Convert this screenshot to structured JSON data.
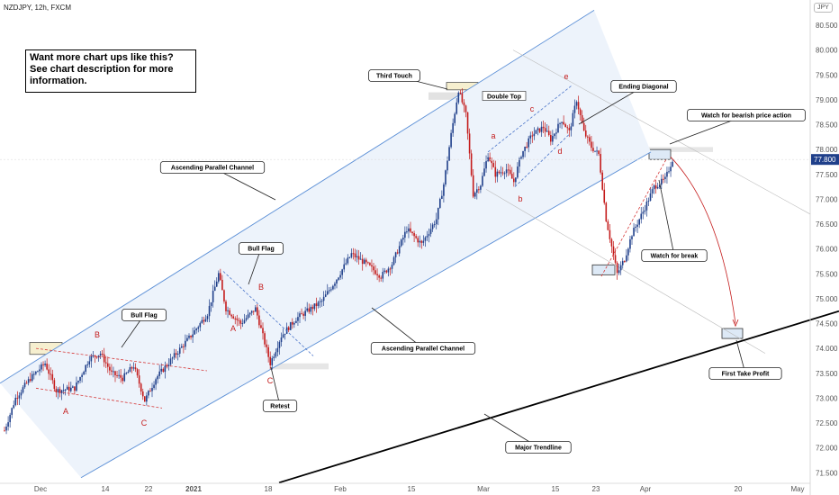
{
  "header": {
    "symbol_line": "NZDJPY, 12h, FXCM",
    "currency": "JPY"
  },
  "promo": [
    "Want more chart ups like this?",
    "See chart description for more",
    "information."
  ],
  "price_scale": {
    "ticks": [
      "80.500",
      "80.000",
      "79.500",
      "79.000",
      "78.500",
      "78.000",
      "77.500",
      "77.000",
      "76.500",
      "76.000",
      "75.500",
      "75.000",
      "74.500",
      "74.000",
      "73.500",
      "73.000",
      "72.500",
      "72.000",
      "71.500"
    ],
    "last_price": "77.800",
    "last_price_color": "#1f3f8a"
  },
  "time_scale": {
    "ticks": [
      "Dec",
      "14",
      "22",
      "2021",
      "18",
      "Feb",
      "15",
      "Mar",
      "15",
      "23",
      "Apr",
      "20",
      "May"
    ]
  },
  "colors": {
    "up": "#1f3f8a",
    "down": "#c41b1b",
    "channel_line": "#5b8fd6",
    "channel_fill": "#edf3fb",
    "trendline": "#000000",
    "dashed": "#d63a3a",
    "blue_dashed": "#4a74c9"
  },
  "callouts": {
    "third_touch": "Third Touch",
    "double_top": "Double Top",
    "ending_diagonal": "Ending Diagonal",
    "watch_bearish": "Watch for bearish price action",
    "ascending_upper": "Ascending Parallel Channel",
    "ascending_lower": "Ascending Parallel Channel",
    "bull_flag_1": "Bull Flag",
    "bull_flag_2": "Bull Flag",
    "retest": "Retest",
    "watch_break": "Watch for break",
    "first_tp": "First Take Profit",
    "major_trendline": "Major Trendline"
  },
  "wave_labels": {
    "flag1": [
      "B",
      "A",
      "C"
    ],
    "flag2": [
      "B",
      "A",
      "C"
    ],
    "diagonal": [
      "a",
      "b",
      "c",
      "d",
      "e"
    ]
  },
  "chart_data": {
    "type": "candlestick",
    "symbol": "NZDJPY",
    "timeframe": "12h",
    "source": "FXCM",
    "ylim": [
      71.3,
      80.8
    ],
    "y_ticks": [
      80.5,
      80.0,
      79.5,
      79.0,
      78.5,
      78.0,
      77.5,
      77.0,
      76.5,
      76.0,
      75.5,
      75.0,
      74.5,
      74.0,
      73.5,
      73.0,
      72.5,
      72.0,
      71.5
    ],
    "x_tick_labels": [
      "Dec",
      "14",
      "22",
      "2021",
      "18",
      "Feb",
      "15",
      "Mar",
      "15",
      "23",
      "Apr",
      "20",
      "May"
    ],
    "path_keypoints": [
      [
        0,
        72.35
      ],
      [
        6,
        73.0
      ],
      [
        14,
        73.4
      ],
      [
        22,
        73.7
      ],
      [
        28,
        73.15
      ],
      [
        38,
        73.2
      ],
      [
        46,
        73.8
      ],
      [
        52,
        73.9
      ],
      [
        58,
        73.5
      ],
      [
        64,
        73.4
      ],
      [
        70,
        73.65
      ],
      [
        76,
        72.95
      ],
      [
        82,
        73.4
      ],
      [
        92,
        73.85
      ],
      [
        102,
        74.3
      ],
      [
        110,
        74.7
      ],
      [
        116,
        75.5
      ],
      [
        120,
        74.8
      ],
      [
        128,
        74.5
      ],
      [
        136,
        74.8
      ],
      [
        144,
        73.7
      ],
      [
        150,
        74.25
      ],
      [
        158,
        74.6
      ],
      [
        166,
        74.8
      ],
      [
        172,
        74.95
      ],
      [
        180,
        75.4
      ],
      [
        188,
        75.9
      ],
      [
        196,
        75.7
      ],
      [
        204,
        75.45
      ],
      [
        210,
        75.7
      ],
      [
        218,
        76.4
      ],
      [
        226,
        76.1
      ],
      [
        234,
        76.6
      ],
      [
        238,
        77.3
      ],
      [
        242,
        78.3
      ],
      [
        246,
        79.2
      ],
      [
        250,
        78.7
      ],
      [
        254,
        77.1
      ],
      [
        258,
        77.3
      ],
      [
        262,
        77.9
      ],
      [
        266,
        77.5
      ],
      [
        272,
        77.6
      ],
      [
        276,
        77.35
      ],
      [
        280,
        77.9
      ],
      [
        286,
        78.3
      ],
      [
        292,
        78.45
      ],
      [
        296,
        78.2
      ],
      [
        302,
        78.6
      ],
      [
        306,
        78.35
      ],
      [
        310,
        79.0
      ],
      [
        314,
        78.35
      ],
      [
        318,
        78.05
      ],
      [
        322,
        77.9
      ],
      [
        326,
        76.6
      ],
      [
        332,
        75.5
      ],
      [
        336,
        75.8
      ],
      [
        340,
        76.3
      ],
      [
        346,
        76.75
      ],
      [
        352,
        77.25
      ],
      [
        358,
        77.4
      ],
      [
        362,
        77.8
      ]
    ],
    "annotations": {
      "third_touch_zone": [
        79.35,
        79.2
      ],
      "double_top_zone": [
        79.15,
        79.0
      ],
      "resistance_zone": [
        78.05,
        77.95
      ],
      "retest_zone": [
        73.7,
        73.58
      ],
      "watch_zone": [
        78.0,
        77.8
      ],
      "break_low_zone": [
        75.68,
        75.48
      ],
      "take_profit_zone": [
        74.4,
        74.2
      ],
      "trendline": [
        [
          350,
          71.3
        ],
        [
          932,
          74.75
        ]
      ],
      "channel_upper": [
        [
          0,
          73.3
        ],
        [
          660,
          80.8
        ]
      ],
      "channel_lower": [
        [
          90,
          71.4
        ],
        [
          723,
          77.95
        ]
      ]
    }
  }
}
